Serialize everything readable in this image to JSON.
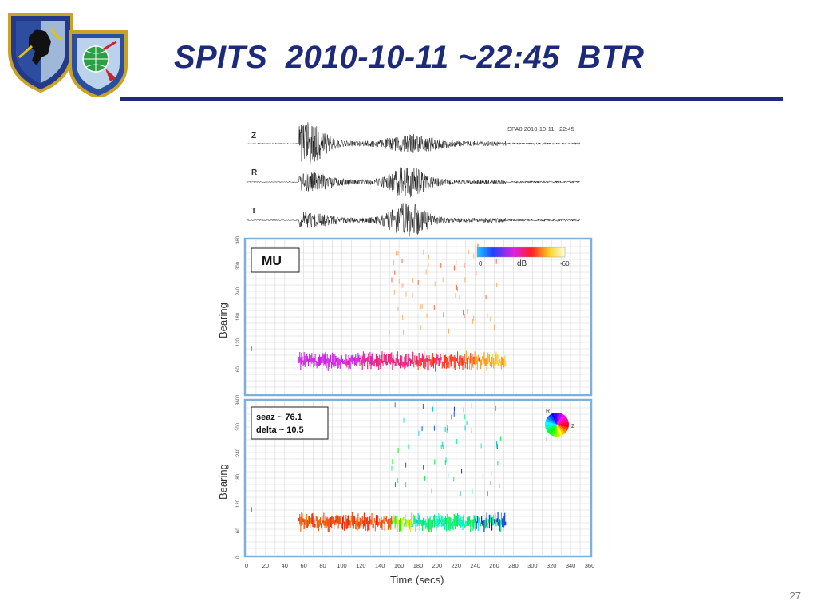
{
  "slide": {
    "title": "SPITS  2010-10-11 ~22:45  BTR",
    "page_number": "27",
    "accent_color": "#1d2a7a"
  },
  "emblems": {
    "left_badge_text": "AIR FORCE ISR AGENCY",
    "right_badge_text": "AIR FORCE TECHNICAL APPLICATIONS CENTER"
  },
  "figure": {
    "header": "SPA0  2010-10-11 ~22:45",
    "traces": [
      "Z",
      "R",
      "T"
    ],
    "top_panel": {
      "label": "MU",
      "colorbar": {
        "label": "dB",
        "min_label": "0",
        "max_label": "-60"
      },
      "y_ticks": [
        "0",
        "60",
        "120",
        "180",
        "240",
        "300",
        "360"
      ]
    },
    "bottom_panel": {
      "annotation_line1": "seaz ~ 76.1",
      "annotation_line2": "delta ~ 10.5",
      "color_wheel_labels": {
        "r": "R",
        "z": "Z",
        "t": "T"
      },
      "y_ticks": [
        "0",
        "60",
        "120",
        "180",
        "240",
        "300",
        "360"
      ]
    },
    "ylabel": "Bearing",
    "xlabel": "Time (secs)",
    "x_ticks": [
      "0",
      "20",
      "40",
      "60",
      "80",
      "100",
      "120",
      "140",
      "160",
      "180",
      "200",
      "220",
      "240",
      "260",
      "280",
      "300",
      "320",
      "340",
      "360"
    ],
    "x_range": [
      0,
      360
    ],
    "y_range": [
      0,
      360
    ],
    "signal_window": [
      55,
      272
    ],
    "signal_bearing": 76
  }
}
